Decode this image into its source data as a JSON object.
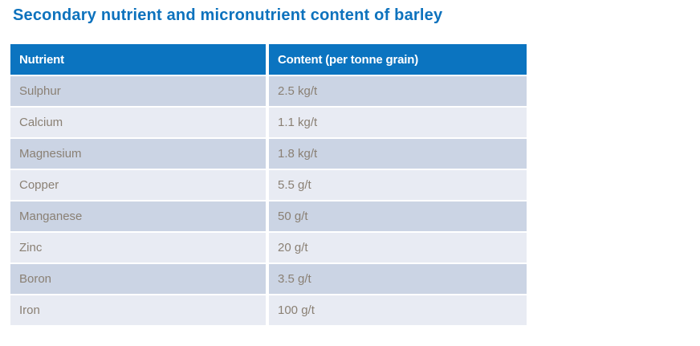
{
  "title": "Secondary nutrient and micronutrient content of barley",
  "table": {
    "columns": [
      {
        "label": "Nutrient"
      },
      {
        "label": "Content (per tonne grain)"
      }
    ],
    "rows": [
      {
        "nutrient": "Sulphur",
        "content": "2.5 kg/t"
      },
      {
        "nutrient": "Calcium",
        "content": "1.1 kg/t"
      },
      {
        "nutrient": "Magnesium",
        "content": "1.8 kg/t"
      },
      {
        "nutrient": "Copper",
        "content": "5.5 g/t"
      },
      {
        "nutrient": "Manganese",
        "content": "50 g/t"
      },
      {
        "nutrient": "Zinc",
        "content": "20 g/t"
      },
      {
        "nutrient": "Boron",
        "content": "3.5 g/t"
      },
      {
        "nutrient": "Iron",
        "content": "100 g/t"
      }
    ]
  },
  "colors": {
    "title_text": "#0d72bd",
    "header_bg": "#0b74c0",
    "header_text": "#ffffff",
    "row_dark": "#cbd4e4",
    "row_light": "#e8ebf3",
    "data_text": "#8a8074",
    "page_bg": "#ffffff"
  }
}
